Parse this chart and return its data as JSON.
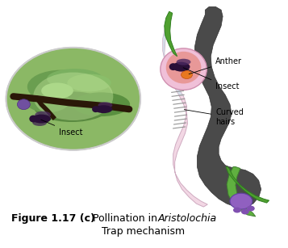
{
  "title_bold": "Figure 1.17 (c)",
  "title_normal": "  Pollination in ",
  "title_italic": "Aristolochia",
  "title_dash": " -",
  "title_line2": "Trap mechanism",
  "label_insect_left": "Insect",
  "label_curved_hairs": "Curved\nhairs",
  "label_insect_right": "Insect",
  "label_anther": "Anther",
  "bg_color": "#ffffff",
  "text_color": "#000000",
  "font_size_caption": 9,
  "font_size_labels": 7
}
